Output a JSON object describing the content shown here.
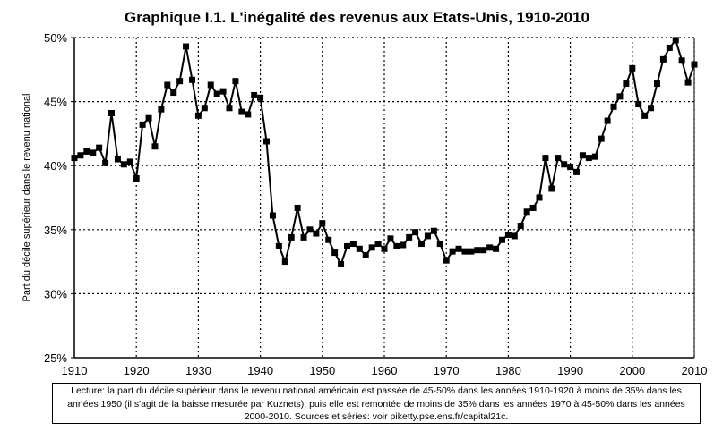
{
  "chart_data": {
    "type": "line",
    "title": "Graphique I.1. L'inégalité des revenus aux Etats-Unis, 1910-2010",
    "xlabel": "",
    "ylabel": "Part du décile supérieur dans le revenu national",
    "xlim": [
      1910,
      2010
    ],
    "ylim": [
      25,
      50
    ],
    "xticks": [
      "1910",
      "1920",
      "1930",
      "1940",
      "1950",
      "1960",
      "1970",
      "1980",
      "1990",
      "2000",
      "2010"
    ],
    "yticks": [
      "25%",
      "30%",
      "35%",
      "40%",
      "45%",
      "50%"
    ],
    "grid": true,
    "legend": "none",
    "line_color": "#000000",
    "x": [
      1910,
      1911,
      1912,
      1913,
      1914,
      1915,
      1916,
      1917,
      1918,
      1919,
      1920,
      1921,
      1922,
      1923,
      1924,
      1925,
      1926,
      1927,
      1928,
      1929,
      1930,
      1931,
      1932,
      1933,
      1934,
      1935,
      1936,
      1937,
      1938,
      1939,
      1940,
      1941,
      1942,
      1943,
      1944,
      1945,
      1946,
      1947,
      1948,
      1949,
      1950,
      1951,
      1952,
      1953,
      1954,
      1955,
      1956,
      1957,
      1958,
      1959,
      1960,
      1961,
      1962,
      1963,
      1964,
      1965,
      1966,
      1967,
      1968,
      1969,
      1970,
      1971,
      1972,
      1973,
      1974,
      1975,
      1976,
      1977,
      1978,
      1979,
      1980,
      1981,
      1982,
      1983,
      1984,
      1985,
      1986,
      1987,
      1988,
      1989,
      1990,
      1991,
      1992,
      1993,
      1994,
      1995,
      1996,
      1997,
      1998,
      1999,
      2000,
      2001,
      2002,
      2003,
      2004,
      2005,
      2006,
      2007,
      2008,
      2009,
      2010
    ],
    "values": [
      40.6,
      40.8,
      41.1,
      41.0,
      41.4,
      40.2,
      44.1,
      40.5,
      40.1,
      40.3,
      39.0,
      43.2,
      43.7,
      41.5,
      44.4,
      46.3,
      45.7,
      46.6,
      49.3,
      46.7,
      43.9,
      44.5,
      46.3,
      45.6,
      45.8,
      44.5,
      46.6,
      44.2,
      44.0,
      45.5,
      45.3,
      41.9,
      36.1,
      33.7,
      32.5,
      34.4,
      36.7,
      34.4,
      35.0,
      34.7,
      35.5,
      34.2,
      33.2,
      32.3,
      33.7,
      33.9,
      33.5,
      33.0,
      33.6,
      33.9,
      33.5,
      34.3,
      33.7,
      33.8,
      34.4,
      34.8,
      33.9,
      34.5,
      34.9,
      33.9,
      32.6,
      33.3,
      33.5,
      33.3,
      33.3,
      33.4,
      33.4,
      33.6,
      33.5,
      34.2,
      34.6,
      34.5,
      35.3,
      36.4,
      36.7,
      37.5,
      40.6,
      38.2,
      40.6,
      40.1,
      39.9,
      39.5,
      40.8,
      40.6,
      40.7,
      42.1,
      43.5,
      44.6,
      45.4,
      46.4,
      47.6,
      44.8,
      43.9,
      44.5,
      46.4,
      48.3,
      49.2,
      49.8,
      48.2,
      46.5,
      47.9
    ]
  },
  "note": "Lecture: la part du décile supérieur dans le revenu national américain est passée de 45-50% dans les années 1910-1920 à moins de 35% dans les années 1950 (il s'agit de la baisse mesurée par Kuznets); puis elle est remontée de moins de 35% dans les années 1970 à 45-50% dans les années 2000-2010. Sources et séries: voir piketty.pse.ens.fr/capital21c."
}
